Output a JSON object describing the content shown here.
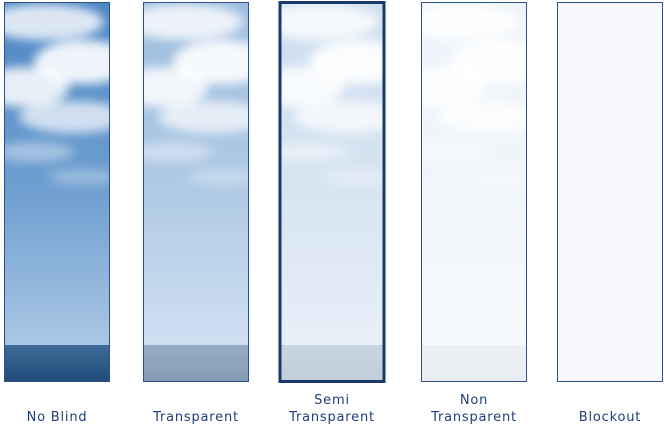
{
  "options": [
    {
      "label": [
        "No Blind"
      ]
    },
    {
      "label": [
        "Transparent"
      ]
    },
    {
      "label": [
        "Semi",
        "Transparent"
      ]
    },
    {
      "label": [
        "Non",
        "Transparent"
      ]
    },
    {
      "label": [
        "Blockout"
      ]
    }
  ]
}
